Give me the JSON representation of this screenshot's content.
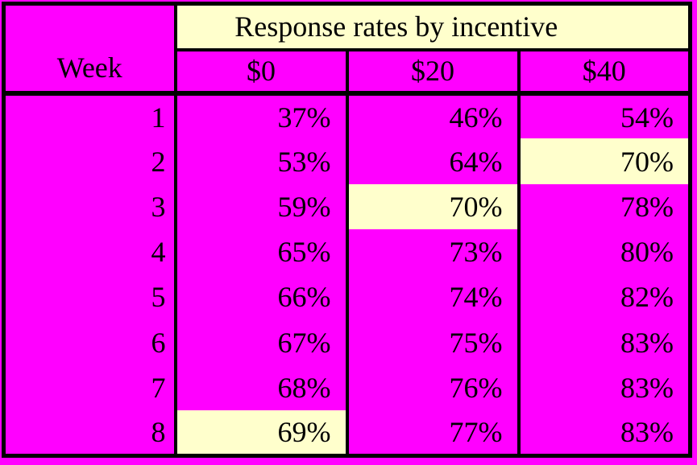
{
  "title": "Response rates by incentive",
  "colors": {
    "table_background": "#FF00FF",
    "highlight_background": "#FFFFCC",
    "border": "#000000",
    "text": "#000000"
  },
  "table": {
    "corner_header": "Week",
    "column_headers": [
      "$0",
      "$20",
      "$40"
    ],
    "rows": [
      {
        "week": "1",
        "cells": [
          {
            "t": "37%",
            "hl": false
          },
          {
            "t": "46%",
            "hl": false
          },
          {
            "t": "54%",
            "hl": false
          }
        ]
      },
      {
        "week": "2",
        "cells": [
          {
            "t": "53%",
            "hl": false
          },
          {
            "t": "64%",
            "hl": false
          },
          {
            "t": "70%",
            "hl": true
          }
        ]
      },
      {
        "week": "3",
        "cells": [
          {
            "t": "59%",
            "hl": false
          },
          {
            "t": "70%",
            "hl": true
          },
          {
            "t": "78%",
            "hl": false
          }
        ]
      },
      {
        "week": "4",
        "cells": [
          {
            "t": "65%",
            "hl": false
          },
          {
            "t": "73%",
            "hl": false
          },
          {
            "t": "80%",
            "hl": false
          }
        ]
      },
      {
        "week": "5",
        "cells": [
          {
            "t": "66%",
            "hl": false
          },
          {
            "t": "74%",
            "hl": false
          },
          {
            "t": "82%",
            "hl": false
          }
        ]
      },
      {
        "week": "6",
        "cells": [
          {
            "t": "67%",
            "hl": false
          },
          {
            "t": "75%",
            "hl": false
          },
          {
            "t": "83%",
            "hl": false
          }
        ]
      },
      {
        "week": "7",
        "cells": [
          {
            "t": "68%",
            "hl": false
          },
          {
            "t": "76%",
            "hl": false
          },
          {
            "t": "83%",
            "hl": false
          }
        ]
      },
      {
        "week": "8",
        "cells": [
          {
            "t": "69%",
            "hl": true
          },
          {
            "t": "77%",
            "hl": false
          },
          {
            "t": "83%",
            "hl": false
          }
        ]
      }
    ]
  },
  "chart_data": {
    "type": "table",
    "title": "Response rates by incentive",
    "xlabel": "Week",
    "categories": [
      1,
      2,
      3,
      4,
      5,
      6,
      7,
      8
    ],
    "series": [
      {
        "name": "$0",
        "values": [
          37,
          53,
          59,
          65,
          66,
          67,
          68,
          69
        ]
      },
      {
        "name": "$20",
        "values": [
          46,
          64,
          70,
          73,
          74,
          75,
          76,
          77
        ]
      },
      {
        "name": "$40",
        "values": [
          54,
          70,
          78,
          80,
          82,
          83,
          83,
          83
        ]
      }
    ],
    "value_unit": "%",
    "highlighted_cells": [
      {
        "week": 2,
        "series": "$40",
        "value": 70
      },
      {
        "week": 3,
        "series": "$20",
        "value": 70
      },
      {
        "week": 8,
        "series": "$0",
        "value": 69
      }
    ]
  }
}
